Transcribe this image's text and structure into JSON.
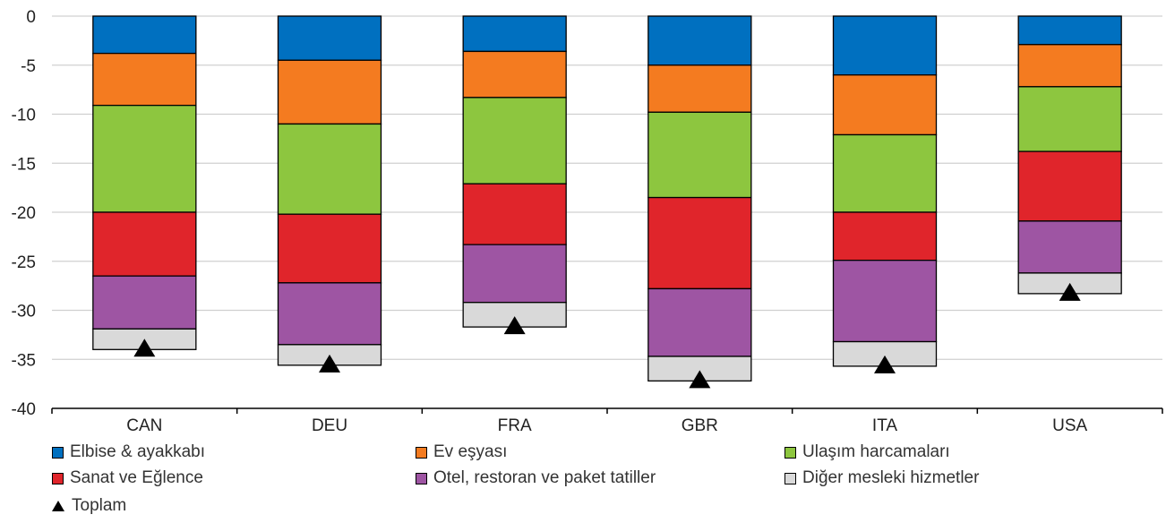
{
  "chart_data": {
    "type": "bar",
    "stacked": true,
    "categories": [
      "CAN",
      "DEU",
      "FRA",
      "GBR",
      "ITA",
      "USA"
    ],
    "ylim": [
      -40,
      0
    ],
    "yticks": [
      0,
      -5,
      -10,
      -15,
      -20,
      -25,
      -30,
      -35,
      -40
    ],
    "grid": true,
    "series": [
      {
        "name": "Elbise & ayakkabı",
        "color": "#0070c0",
        "values": [
          -3.8,
          -4.5,
          -3.6,
          -5.0,
          -6.0,
          -2.9
        ]
      },
      {
        "name": "Ev eşyası",
        "color": "#f47b20",
        "values": [
          -5.3,
          -6.5,
          -4.7,
          -4.8,
          -6.1,
          -4.3
        ]
      },
      {
        "name": "Ulaşım harcamaları",
        "color": "#8dc63f",
        "values": [
          -10.9,
          -9.2,
          -8.8,
          -8.7,
          -7.9,
          -6.6
        ]
      },
      {
        "name": "Sanat ve Eğlence",
        "color": "#e0252b",
        "values": [
          -6.5,
          -7.0,
          -6.2,
          -9.3,
          -4.9,
          -7.1
        ]
      },
      {
        "name": "Otel, restoran ve paket tatiller",
        "color": "#9e55a3",
        "values": [
          -5.4,
          -6.3,
          -5.9,
          -6.9,
          -8.3,
          -5.3
        ]
      },
      {
        "name": "Diğer mesleki hizmetler",
        "color": "#d9d9d9",
        "values": [
          -2.1,
          -2.1,
          -2.5,
          -2.5,
          -2.5,
          -2.1
        ]
      }
    ],
    "total": {
      "name": "Toplam",
      "values": [
        -34.0,
        -35.6,
        -31.7,
        -37.2,
        -35.7,
        -28.3
      ]
    }
  },
  "legend": {
    "items": [
      {
        "label": "Elbise & ayakkabı",
        "color": "#0070c0",
        "marker": "square"
      },
      {
        "label": "Ev eşyası",
        "color": "#f47b20",
        "marker": "square"
      },
      {
        "label": "Ulaşım harcamaları",
        "color": "#8dc63f",
        "marker": "square"
      },
      {
        "label": "Sanat ve Eğlence",
        "color": "#e0252b",
        "marker": "square"
      },
      {
        "label": "Otel, restoran ve paket tatiller",
        "color": "#9e55a3",
        "marker": "square"
      },
      {
        "label": "Diğer mesleki hizmetler",
        "color": "#d9d9d9",
        "marker": "square"
      },
      {
        "label": "Toplam",
        "color": "#000000",
        "marker": "triangle"
      }
    ]
  }
}
